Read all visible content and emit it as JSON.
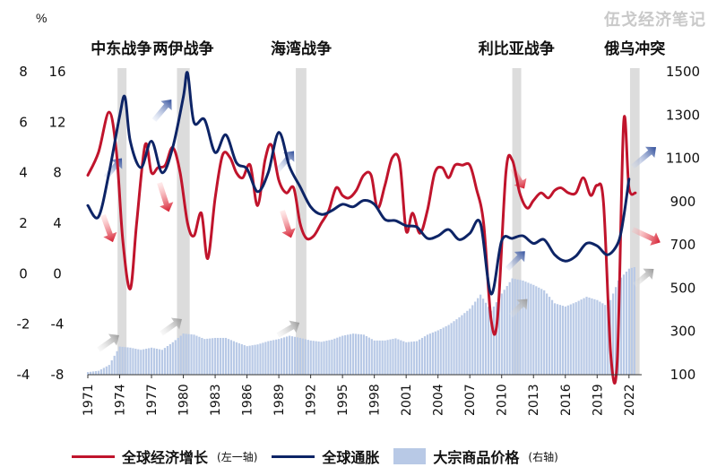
{
  "watermark": "伍戈经济笔记",
  "left_axis_unit": "%",
  "chart_data": {
    "type": "line",
    "title": "",
    "x_ticks": [
      "1971",
      "1974",
      "1977",
      "1980",
      "1983",
      "1986",
      "1989",
      "1992",
      "1995",
      "1998",
      "2001",
      "2004",
      "2007",
      "2010",
      "2013",
      "2016",
      "2019",
      "2022"
    ],
    "axes": {
      "growth_axis": {
        "side": "left",
        "ticks": [
          8,
          6,
          4,
          2,
          0,
          -2,
          -4
        ],
        "range": [
          -4,
          8
        ]
      },
      "inflation_axis": {
        "side": "left-inner",
        "ticks": [
          16,
          12,
          8,
          4,
          0,
          -4,
          -8
        ],
        "range": [
          -8,
          16
        ]
      },
      "commodity_axis": {
        "side": "right",
        "ticks": [
          1500,
          1300,
          1100,
          900,
          700,
          500,
          300,
          100
        ],
        "range": [
          100,
          1500
        ]
      }
    },
    "events": [
      {
        "label": "中东战争",
        "start": 1973.8,
        "end": 1974.5
      },
      {
        "label": "两伊战争",
        "start": 1979.4,
        "end": 1980.6
      },
      {
        "label": "海湾战争",
        "start": 1990.6,
        "end": 1991.6
      },
      {
        "label": "利比亚战争",
        "start": 2011.0,
        "end": 2011.8
      },
      {
        "label": "俄乌冲突",
        "start": 2022.1,
        "end": 2023.0
      }
    ],
    "series": [
      {
        "name": "全球经济增长",
        "axis_note": "(左一轴)",
        "axis": "growth_axis",
        "color": "#c0142c",
        "points": [
          [
            1971,
            3.9
          ],
          [
            1972,
            4.8
          ],
          [
            1973,
            6.4
          ],
          [
            1973.7,
            4.8
          ],
          [
            1974.3,
            1.3
          ],
          [
            1975,
            -0.6
          ],
          [
            1975.6,
            2.0
          ],
          [
            1976.4,
            5.1
          ],
          [
            1977,
            4.0
          ],
          [
            1977.6,
            4.2
          ],
          [
            1978.3,
            4.3
          ],
          [
            1979,
            5.0
          ],
          [
            1979.7,
            4.0
          ],
          [
            1980.4,
            2.0
          ],
          [
            1981,
            1.5
          ],
          [
            1981.7,
            2.4
          ],
          [
            1982.3,
            0.6
          ],
          [
            1983,
            3.0
          ],
          [
            1983.7,
            4.7
          ],
          [
            1984.4,
            4.6
          ],
          [
            1985,
            4.0
          ],
          [
            1985.6,
            3.8
          ],
          [
            1986.3,
            4.3
          ],
          [
            1987,
            2.7
          ],
          [
            1987.7,
            4.5
          ],
          [
            1988.3,
            5.1
          ],
          [
            1989,
            3.7
          ],
          [
            1989.7,
            3.2
          ],
          [
            1990.4,
            3.4
          ],
          [
            1991,
            2.0
          ],
          [
            1991.6,
            1.4
          ],
          [
            1992.3,
            1.5
          ],
          [
            1993,
            2.0
          ],
          [
            1993.7,
            2.5
          ],
          [
            1994.4,
            3.4
          ],
          [
            1995,
            3.1
          ],
          [
            1995.6,
            3.0
          ],
          [
            1996.3,
            3.3
          ],
          [
            1997,
            3.9
          ],
          [
            1997.7,
            3.9
          ],
          [
            1998.3,
            2.6
          ],
          [
            1999,
            3.5
          ],
          [
            1999.7,
            4.6
          ],
          [
            2000.4,
            4.4
          ],
          [
            2001,
            1.7
          ],
          [
            2001.6,
            2.4
          ],
          [
            2002.3,
            1.6
          ],
          [
            2003,
            2.5
          ],
          [
            2003.7,
            4.0
          ],
          [
            2004.4,
            4.2
          ],
          [
            2005,
            3.8
          ],
          [
            2005.6,
            4.3
          ],
          [
            2006.3,
            4.3
          ],
          [
            2007,
            4.3
          ],
          [
            2007.6,
            3.4
          ],
          [
            2008.3,
            2.0
          ],
          [
            2009,
            -1.8
          ],
          [
            2009.6,
            -1.8
          ],
          [
            2010.4,
            4.0
          ],
          [
            2011,
            4.5
          ],
          [
            2011.7,
            3.2
          ],
          [
            2012.4,
            2.6
          ],
          [
            2013,
            2.9
          ],
          [
            2013.7,
            3.2
          ],
          [
            2014.4,
            3.0
          ],
          [
            2015,
            3.3
          ],
          [
            2015.6,
            3.4
          ],
          [
            2016.3,
            3.2
          ],
          [
            2017,
            3.2
          ],
          [
            2017.7,
            3.8
          ],
          [
            2018.4,
            3.1
          ],
          [
            2019,
            3.5
          ],
          [
            2019.6,
            2.8
          ],
          [
            2020.3,
            -3.3
          ],
          [
            2020.9,
            -3.4
          ],
          [
            2021.5,
            6.0
          ],
          [
            2022,
            3.4
          ],
          [
            2022.6,
            3.2
          ]
        ]
      },
      {
        "name": "全球通胀",
        "axis": "inflation_axis",
        "color": "#0d2466",
        "points": [
          [
            1971,
            5.4
          ],
          [
            1972,
            4.5
          ],
          [
            1973,
            8.0
          ],
          [
            1974,
            12.5
          ],
          [
            1974.5,
            14.0
          ],
          [
            1975,
            10.5
          ],
          [
            1976,
            8.4
          ],
          [
            1977,
            10.5
          ],
          [
            1978,
            8.0
          ],
          [
            1979,
            10.0
          ],
          [
            1980,
            14.0
          ],
          [
            1980.4,
            15.9
          ],
          [
            1981,
            12.0
          ],
          [
            1982,
            12.2
          ],
          [
            1983,
            9.6
          ],
          [
            1984,
            11.0
          ],
          [
            1985,
            8.8
          ],
          [
            1986,
            8.3
          ],
          [
            1987,
            6.5
          ],
          [
            1988,
            8.0
          ],
          [
            1989,
            11.2
          ],
          [
            1990,
            8.5
          ],
          [
            1991,
            6.9
          ],
          [
            1992,
            5.3
          ],
          [
            1993,
            4.7
          ],
          [
            1994,
            5.0
          ],
          [
            1995,
            5.5
          ],
          [
            1996,
            5.3
          ],
          [
            1997,
            5.8
          ],
          [
            1998,
            5.5
          ],
          [
            1999,
            4.3
          ],
          [
            2000,
            4.2
          ],
          [
            2001,
            3.8
          ],
          [
            2002,
            3.7
          ],
          [
            2003,
            2.8
          ],
          [
            2004,
            3.0
          ],
          [
            2005,
            3.5
          ],
          [
            2006,
            2.7
          ],
          [
            2007,
            3.2
          ],
          [
            2008,
            4.0
          ],
          [
            2009,
            -1.6
          ],
          [
            2010,
            2.6
          ],
          [
            2011,
            2.8
          ],
          [
            2012,
            3.0
          ],
          [
            2013,
            2.4
          ],
          [
            2014,
            2.7
          ],
          [
            2015,
            1.5
          ],
          [
            2016,
            1.0
          ],
          [
            2017,
            1.4
          ],
          [
            2018,
            2.4
          ],
          [
            2019,
            2.2
          ],
          [
            2020,
            1.5
          ],
          [
            2021,
            2.5
          ],
          [
            2021.5,
            4.5
          ],
          [
            2022,
            7.5
          ]
        ]
      },
      {
        "name": "大宗商品价格",
        "axis_note": "(右轴)",
        "axis": "commodity_axis",
        "type": "bar",
        "color": "#b8c9e6",
        "points": [
          [
            1971,
            112
          ],
          [
            1972,
            118
          ],
          [
            1973,
            145
          ],
          [
            1974,
            230
          ],
          [
            1975,
            225
          ],
          [
            1976,
            215
          ],
          [
            1977,
            225
          ],
          [
            1978,
            215
          ],
          [
            1979,
            250
          ],
          [
            1980,
            290
          ],
          [
            1981,
            285
          ],
          [
            1982,
            265
          ],
          [
            1983,
            270
          ],
          [
            1984,
            270
          ],
          [
            1985,
            250
          ],
          [
            1986,
            232
          ],
          [
            1987,
            240
          ],
          [
            1988,
            255
          ],
          [
            1989,
            265
          ],
          [
            1990,
            280
          ],
          [
            1991,
            270
          ],
          [
            1992,
            258
          ],
          [
            1993,
            252
          ],
          [
            1994,
            262
          ],
          [
            1995,
            280
          ],
          [
            1996,
            290
          ],
          [
            1997,
            285
          ],
          [
            1998,
            258
          ],
          [
            1999,
            258
          ],
          [
            2000,
            268
          ],
          [
            2001,
            250
          ],
          [
            2002,
            255
          ],
          [
            2003,
            285
          ],
          [
            2004,
            305
          ],
          [
            2005,
            330
          ],
          [
            2006,
            365
          ],
          [
            2007,
            405
          ],
          [
            2008,
            470
          ],
          [
            2009,
            395
          ],
          [
            2010,
            475
          ],
          [
            2011,
            545
          ],
          [
            2012,
            535
          ],
          [
            2013,
            515
          ],
          [
            2014,
            490
          ],
          [
            2015,
            430
          ],
          [
            2016,
            415
          ],
          [
            2017,
            435
          ],
          [
            2018,
            460
          ],
          [
            2019,
            445
          ],
          [
            2020,
            415
          ],
          [
            2021,
            535
          ],
          [
            2022,
            590
          ],
          [
            2022.7,
            600
          ]
        ]
      }
    ]
  }
}
